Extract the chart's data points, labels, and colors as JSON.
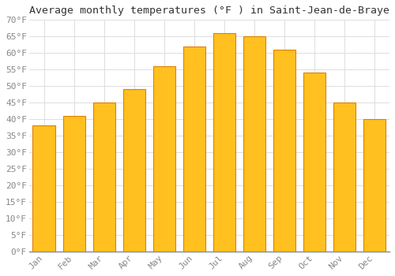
{
  "title": "Average monthly temperatures (°F ) in Saint-Jean-de-Braye",
  "months": [
    "Jan",
    "Feb",
    "Mar",
    "Apr",
    "May",
    "Jun",
    "Jul",
    "Aug",
    "Sep",
    "Oct",
    "Nov",
    "Dec"
  ],
  "values": [
    38,
    41,
    45,
    49,
    56,
    62,
    66,
    65,
    61,
    54,
    45,
    40
  ],
  "bar_color_main": "#FFC020",
  "bar_color_edge": "#E08000",
  "ylim": [
    0,
    70
  ],
  "yticks": [
    0,
    5,
    10,
    15,
    20,
    25,
    30,
    35,
    40,
    45,
    50,
    55,
    60,
    65,
    70
  ],
  "ytick_labels": [
    "0°F",
    "5°F",
    "10°F",
    "15°F",
    "20°F",
    "25°F",
    "30°F",
    "35°F",
    "40°F",
    "45°F",
    "50°F",
    "55°F",
    "60°F",
    "65°F",
    "70°F"
  ],
  "background_color": "#FFFFFF",
  "grid_color": "#DDDDDD",
  "title_fontsize": 9.5,
  "tick_fontsize": 8,
  "font_family": "monospace"
}
